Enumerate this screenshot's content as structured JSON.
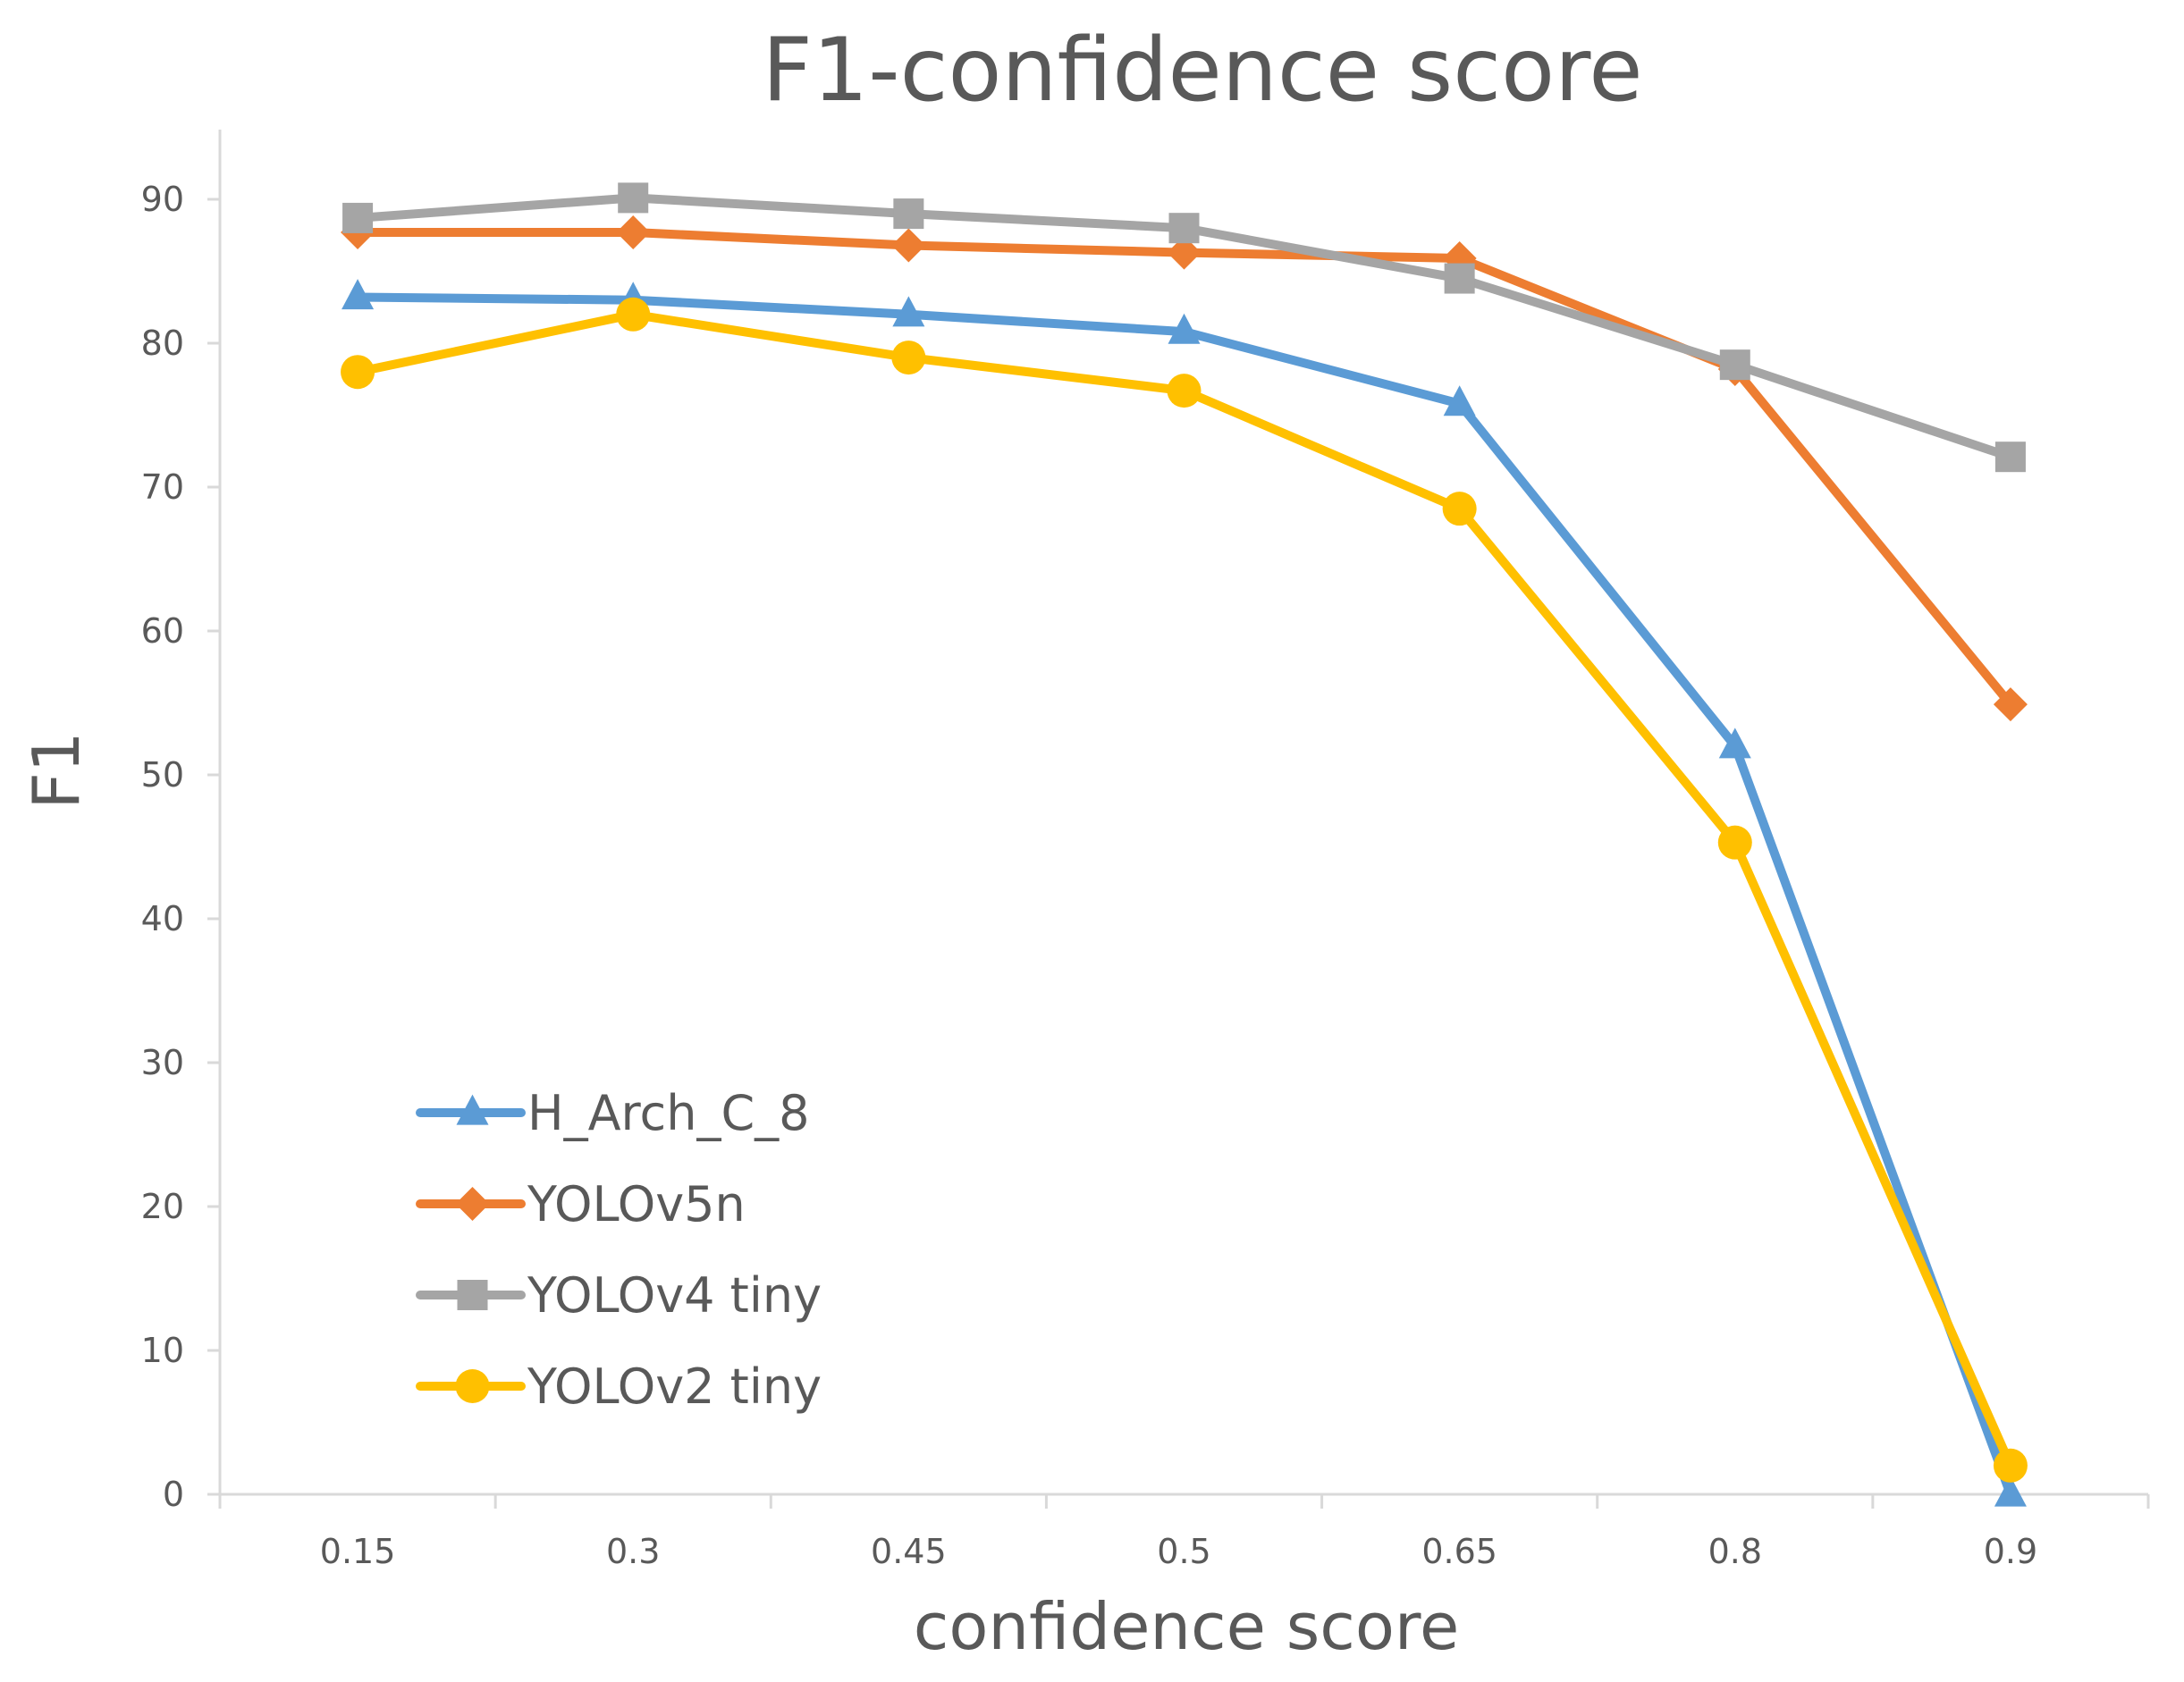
{
  "chart_data": {
    "type": "line",
    "title": "F1-confidence score",
    "xlabel": "confidence score",
    "ylabel": "F1",
    "categories": [
      "0.15",
      "0.3",
      "0.45",
      "0.5",
      "0.65",
      "0.8",
      "0.9"
    ],
    "ylim": [
      0,
      95
    ],
    "yticks": [
      0,
      10,
      20,
      30,
      40,
      50,
      60,
      70,
      80,
      90
    ],
    "grid": false,
    "legend_position": "bottom-left",
    "series": [
      {
        "name": "H_Arch_C_8",
        "color": "#5B9BD5",
        "marker": "triangle",
        "values": [
          83.2,
          83.0,
          82.0,
          80.8,
          75.8,
          52.0,
          0.0
        ]
      },
      {
        "name": "YOLOv5n",
        "color": "#ED7D31",
        "marker": "diamond",
        "values": [
          87.7,
          87.7,
          86.8,
          86.3,
          85.9,
          78.2,
          54.9
        ]
      },
      {
        "name": "YOLOv4 tiny",
        "color": "#A5A5A5",
        "marker": "square",
        "values": [
          88.7,
          90.1,
          89.0,
          88.0,
          84.5,
          78.5,
          72.1
        ]
      },
      {
        "name": "YOLOv2 tiny",
        "color": "#FFC000",
        "marker": "circle",
        "values": [
          78.0,
          82.0,
          79.0,
          76.7,
          68.5,
          45.3,
          2.0
        ]
      }
    ]
  }
}
